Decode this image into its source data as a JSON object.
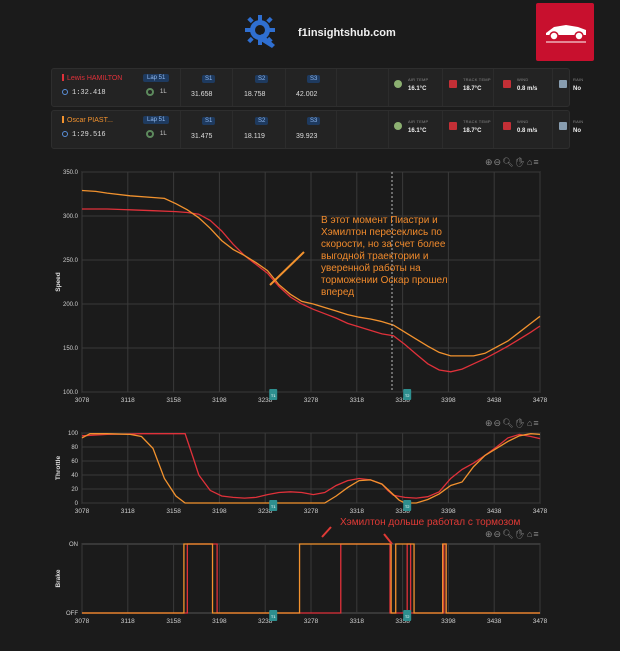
{
  "header": {
    "site_name": "f1insightshub.com",
    "logo_icon": "gear-tools-icon"
  },
  "drivers": [
    {
      "name": "Lewis HAMILTON",
      "color": "#e0313a",
      "lap_time": "1:32.418",
      "lap_badge": "Lap 51",
      "tyre": "1L",
      "s1_label": "S1",
      "s1": "31.658",
      "s2_label": "S2",
      "s2": "18.758",
      "s3_label": "S3",
      "s3": "42.002",
      "air_label": "AIR TEMP",
      "air": "16.1°C",
      "track_label": "TRACK TEMP",
      "track": "18.7°C",
      "wind_label": "WIND",
      "wind": "0.8 m/s",
      "rain_label": "RAIN",
      "rain": "No"
    },
    {
      "name": "Oscar PIAST...",
      "color": "#f2922e",
      "lap_time": "1:29.516",
      "lap_badge": "Lap 51",
      "tyre": "1L",
      "s1_label": "S1",
      "s1": "31.475",
      "s2_label": "S2",
      "s2": "18.119",
      "s3_label": "S3",
      "s3": "39.923",
      "air_label": "AIR TEMP",
      "air": "16.1°C",
      "track_label": "TRACK TEMP",
      "track": "18.7°C",
      "wind_label": "WIND",
      "wind": "0.8 m/s",
      "rain_label": "RAIN",
      "rain": "No"
    }
  ],
  "toolbar": {
    "zoom_in": "⊕",
    "zoom_out": "⊖",
    "search": "🔍︎",
    "pan": "✋︎",
    "home": "⌂",
    "menu": "≡"
  },
  "annotations": {
    "speed_note": "В этот момент Пиастри и Хэмилтон пересеклись по скорости, но за счет более выгодной траектории и уверенной работы на торможении Оскар прошел вперед",
    "brake_note": "Хэмилтон дольше работал с тормозом"
  },
  "markers": {
    "m1": "T1",
    "m2": "T2"
  },
  "chart_data": [
    {
      "type": "line",
      "ylabel": "Speed",
      "xlim": [
        3078,
        3478
      ],
      "ylim": [
        100,
        350
      ],
      "x_ticks": [
        "3078",
        "3118",
        "3158",
        "3198",
        "3238",
        "3278",
        "3318",
        "3358",
        "3398",
        "3438",
        "3478"
      ],
      "y_ticks": [
        "100.0",
        "150.0",
        "200.0",
        "250.0",
        "300.0",
        "350.0"
      ],
      "series": [
        {
          "color": "#e0313a",
          "x": [
            3078,
            3100,
            3120,
            3140,
            3160,
            3170,
            3180,
            3190,
            3200,
            3210,
            3220,
            3230,
            3240,
            3250,
            3260,
            3270,
            3280,
            3290,
            3300,
            3310,
            3320,
            3330,
            3340,
            3350,
            3360,
            3370,
            3380,
            3390,
            3400,
            3410,
            3420,
            3430,
            3440,
            3450,
            3460,
            3470,
            3478
          ],
          "y": [
            308,
            308,
            307,
            306,
            305,
            304,
            302,
            295,
            283,
            268,
            255,
            245,
            235,
            220,
            208,
            200,
            194,
            189,
            184,
            178,
            174,
            170,
            166,
            164,
            154,
            143,
            132,
            125,
            123,
            126,
            132,
            138,
            145,
            152,
            160,
            168,
            175
          ]
        },
        {
          "color": "#f2922e",
          "x": [
            3078,
            3090,
            3100,
            3120,
            3140,
            3150,
            3160,
            3170,
            3180,
            3190,
            3200,
            3210,
            3220,
            3230,
            3240,
            3250,
            3260,
            3270,
            3280,
            3290,
            3300,
            3310,
            3320,
            3330,
            3340,
            3350,
            3360,
            3370,
            3380,
            3390,
            3400,
            3410,
            3420,
            3430,
            3440,
            3450,
            3460,
            3470,
            3478
          ],
          "y": [
            329,
            328,
            326,
            323,
            321,
            320,
            314,
            307,
            298,
            286,
            272,
            262,
            255,
            247,
            238,
            222,
            211,
            203,
            200,
            196,
            192,
            188,
            185,
            183,
            180,
            176,
            168,
            160,
            152,
            145,
            141,
            141,
            141,
            144,
            151,
            158,
            168,
            178,
            186
          ]
        }
      ]
    },
    {
      "type": "line",
      "ylabel": "Throttle",
      "xlim": [
        3078,
        3478
      ],
      "ylim": [
        0,
        100
      ],
      "x_ticks": [
        "3078",
        "3118",
        "3158",
        "3198",
        "3238",
        "3278",
        "3318",
        "3358",
        "3398",
        "3438",
        "3478"
      ],
      "y_ticks": [
        "0",
        "20",
        "40",
        "60",
        "80",
        "100"
      ],
      "series": [
        {
          "color": "#e0313a",
          "x": [
            3078,
            3100,
            3130,
            3160,
            3168,
            3175,
            3180,
            3190,
            3200,
            3210,
            3220,
            3230,
            3240,
            3250,
            3260,
            3270,
            3280,
            3290,
            3300,
            3310,
            3320,
            3330,
            3340,
            3345,
            3350,
            3360,
            3370,
            3380,
            3390,
            3400,
            3410,
            3420,
            3430,
            3440,
            3450,
            3460,
            3470,
            3478
          ],
          "y": [
            96,
            98,
            99,
            99,
            99,
            65,
            40,
            18,
            10,
            8,
            7,
            8,
            12,
            15,
            16,
            15,
            12,
            15,
            25,
            32,
            35,
            33,
            27,
            18,
            11,
            8,
            7,
            9,
            16,
            35,
            48,
            57,
            68,
            80,
            93,
            98,
            95,
            92
          ]
        },
        {
          "color": "#f2922e",
          "x": [
            3078,
            3085,
            3100,
            3120,
            3130,
            3140,
            3150,
            3160,
            3168,
            3180,
            3190,
            3200,
            3210,
            3220,
            3230,
            3240,
            3250,
            3260,
            3270,
            3280,
            3290,
            3300,
            3310,
            3320,
            3330,
            3340,
            3350,
            3355,
            3360,
            3370,
            3380,
            3390,
            3400,
            3410,
            3420,
            3430,
            3440,
            3450,
            3460,
            3470,
            3478
          ],
          "y": [
            93,
            99,
            99,
            98,
            95,
            78,
            35,
            10,
            0,
            0,
            0,
            0,
            0,
            0,
            0,
            0,
            0,
            0,
            0,
            0,
            0,
            10,
            22,
            32,
            33,
            27,
            12,
            4,
            0,
            0,
            5,
            13,
            25,
            30,
            52,
            68,
            78,
            88,
            96,
            99,
            98
          ]
        }
      ]
    },
    {
      "type": "line",
      "ylabel": "Brake",
      "xlim": [
        3078,
        3478
      ],
      "x_ticks": [
        "3078",
        "3118",
        "3158",
        "3198",
        "3238",
        "3278",
        "3318",
        "3358",
        "3398",
        "3438",
        "3478"
      ],
      "y_ticks": [
        "OFF",
        "ON"
      ],
      "series": [
        {
          "color": "#e0313a",
          "on_intervals": [
            [
              3170,
              3196
            ],
            [
              3304,
              3347
            ],
            [
              3362,
              3365
            ],
            [
              3394,
              3396
            ]
          ]
        },
        {
          "color": "#f2922e",
          "on_intervals": [
            [
              3167,
              3192
            ],
            [
              3268,
              3348
            ],
            [
              3352,
              3368
            ],
            [
              3393,
              3396
            ]
          ]
        }
      ]
    }
  ]
}
